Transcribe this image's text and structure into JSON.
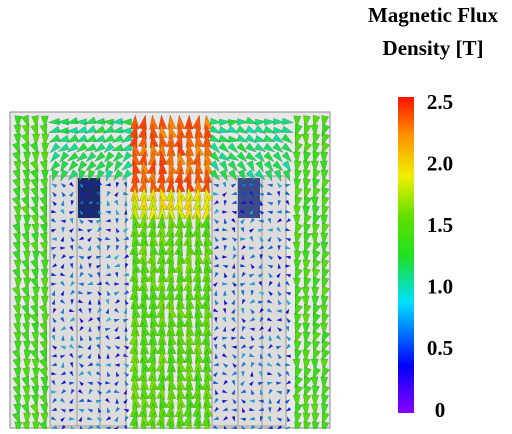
{
  "colorbar": {
    "title": [
      "Magnetic Flux",
      "Density [T]"
    ],
    "range": [
      0,
      2.5
    ],
    "ticks": [
      {
        "value": 2.5,
        "label": "2.5"
      },
      {
        "value": 2,
        "label": "2.0"
      },
      {
        "value": 1.5,
        "label": "1.5"
      },
      {
        "value": 1,
        "label": "1.0"
      },
      {
        "value": 0.5,
        "label": "0.5"
      },
      0
    ]
  }
}
